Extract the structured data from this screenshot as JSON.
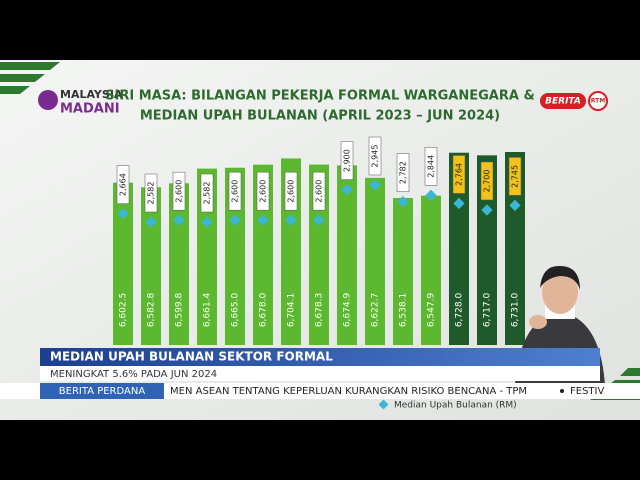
{
  "header": {
    "logo_top": "MALAYSIA",
    "logo_bottom": "MADANI",
    "channel": "BERITA",
    "network": "RTM"
  },
  "chart_data": {
    "type": "bar",
    "title": [
      "SIRI MASA: BILANGAN PEKERJA FORMAL WARGANEGARA &",
      "MEDIAN UPAH BULANAN (APRIL 2023 – JUN 2024)"
    ],
    "categories": [
      null,
      null,
      null,
      null,
      null,
      null,
      null,
      null,
      null,
      null,
      null,
      null,
      null,
      null,
      null
    ],
    "series": [
      {
        "values": [
          6602.5,
          6582.8,
          6599.8,
          6661.4,
          6665.0,
          6678.0,
          6704.1,
          6678.3,
          6674.9,
          6622.7,
          6538.1,
          6547.9,
          6728.0,
          6717.0,
          6731.0
        ],
        "value_labels": [
          "6,602.5",
          "6,582.8",
          "6,599.8",
          "6,661.4",
          "6,665.0",
          "6,678.0",
          "6,704.1",
          "6,678.3",
          "6,674.9",
          "6,622.7",
          "6,538.1",
          "6,547.9",
          "6,728.0",
          "6,717.0",
          "6,731.0"
        ],
        "colors": [
          "#5cb82e",
          "#5cb82e",
          "#5cb82e",
          "#5cb82e",
          "#5cb82e",
          "#5cb82e",
          "#5cb82e",
          "#5cb82e",
          "#5cb82e",
          "#5cb82e",
          "#5cb82e",
          "#5cb82e",
          "#1f5a2a",
          "#1f5a2a",
          "#1f5a2a"
        ]
      },
      {
        "name": "Median Upah Bulanan (RM)",
        "type": "scatter",
        "color": "#3cb6d6",
        "values": [
          2664,
          2582,
          2600,
          2582,
          2600,
          2600,
          2600,
          2600,
          2900,
          2945,
          2782,
          2844,
          2764,
          2700,
          2745
        ],
        "value_labels": [
          "2,664",
          "2,582",
          "2,600",
          "2,582",
          "2,600",
          "2,600",
          "2,600",
          "2,600",
          "2,900",
          "2,945",
          "2,782",
          "2,844",
          "2,764",
          "2,700",
          "2,745"
        ],
        "label_colors": [
          "#ffffff",
          "#ffffff",
          "#ffffff",
          "#ffffff",
          "#ffffff",
          "#ffffff",
          "#ffffff",
          "#ffffff",
          "#ffffff",
          "#ffffff",
          "#ffffff",
          "#ffffff",
          "#f2c21b",
          "#f2c21b",
          "#f2c21b"
        ]
      }
    ]
  },
  "overlay": {
    "headline": "MEDIAN UPAH BULANAN SEKTOR FORMAL",
    "subline": "MENINGKAT 5.6% PADA JUN 2024",
    "ticker_label": "BERITA PERDANA",
    "ticker_text": "MEN ASEAN TENTANG KEPERLUAN KURANGKAN RISIKO BENCANA - TPM",
    "ticker_next": "FESTIV"
  }
}
